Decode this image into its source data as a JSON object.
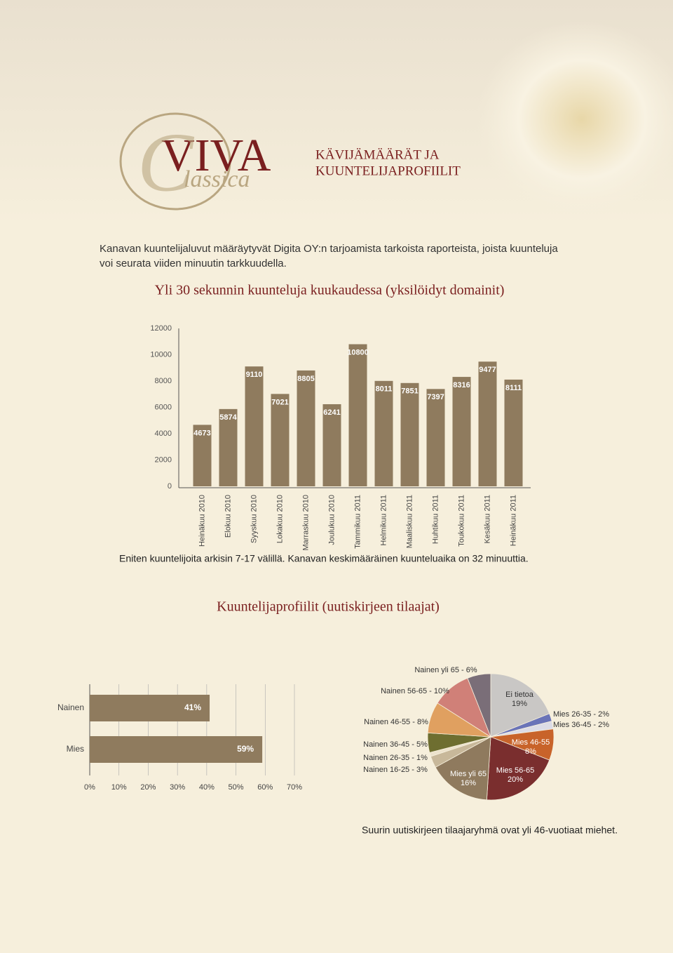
{
  "logo": {
    "main": "VIVA",
    "initial": "C",
    "script": "lassica"
  },
  "heading": {
    "lines": [
      "KÄVIJÄMÄÄRÄT JA",
      "KUUNTELIJAPROFIILIT"
    ]
  },
  "intro": {
    "lines": [
      "Kanavan kuuntelijaluvut määräytyvät Digita OY:n tarjoamista tarkoista raporteista, joista kuunteluja",
      "voi seurata viiden minuutin tarkkuudella."
    ]
  },
  "note": "Eniten kuuntelijoita arkisin 7-17 välillä. Kanavan keskimääräinen kuunteluaika on 32 minuuttia.",
  "section_title": "Kuuntelijaprofiilit (uutiskirjeen tilaajat)",
  "footer": "Suurin uutiskirjeen tilaajaryhmä ovat yli 46-vuotiaat miehet.",
  "chart_data": [
    {
      "type": "bar",
      "title": "Yli 30 sekunnin kuunteluja kuukaudessa (yksilöidyt domainit)",
      "categories": [
        "Heinäkuu 2010",
        "Elokuu 2010",
        "Syyskuu 2010",
        "Lokakuu 2010",
        "Marraskuu 2010",
        "Joulukuu 2010",
        "Tammikuu 2011",
        "Helmikuu 2011",
        "Maaliskuu 2011",
        "Huhtikuu 2011",
        "Toukokuu 2011",
        "Kesäkuu 2011",
        "Heinäkuu 2011"
      ],
      "values": [
        4673,
        5874,
        9110,
        7021,
        8805,
        6241,
        10800,
        8011,
        7851,
        7397,
        8316,
        9477,
        8111
      ],
      "color": "#8f7b5e",
      "ylim": [
        0,
        12000
      ],
      "yticks": [
        0,
        2000,
        4000,
        6000,
        8000,
        10000,
        12000
      ],
      "grid": false
    },
    {
      "type": "hbar",
      "categories": [
        "Nainen",
        "Mies"
      ],
      "values": [
        41,
        59
      ],
      "value_labels": [
        "41%",
        "59%"
      ],
      "color": "#8f7b5e",
      "xlim": [
        0,
        70
      ],
      "xticks": [
        {
          "value": 0,
          "label": "0%"
        },
        {
          "value": 10,
          "label": "10%"
        },
        {
          "value": 20,
          "label": "20%"
        },
        {
          "value": 30,
          "label": "30%"
        },
        {
          "value": 40,
          "label": "40%"
        },
        {
          "value": 50,
          "label": "50%"
        },
        {
          "value": 60,
          "label": "60%"
        },
        {
          "value": 70,
          "label": "70%"
        }
      ],
      "grid": true
    },
    {
      "type": "pie",
      "labels": [
        [
          "Ei tietoa",
          "19%"
        ],
        [
          "Mies 26-35 - 2%"
        ],
        [
          "Mies 36-45 - 2%"
        ],
        [
          "Mies 46-55",
          "8%"
        ],
        [
          "Mies 56-65",
          "20%"
        ],
        [
          "Mies yli 65",
          "16%"
        ],
        [
          "Nainen 16-25 - 3%"
        ],
        [
          "Nainen 26-35 - 1%"
        ],
        [
          "Nainen 36-45 - 5%"
        ],
        [
          "Nainen 46-55 - 8%"
        ],
        [
          "Nainen 56-65 - 10%"
        ],
        [
          "Nainen yli 65 - 6%"
        ]
      ],
      "values": [
        19,
        2,
        2,
        8,
        20,
        16,
        3,
        1,
        5,
        8,
        10,
        6
      ],
      "colors": [
        "#c9c7c5",
        "#6a74b8",
        "#dcdce6",
        "#c8632a",
        "#7a2e2e",
        "#8f7a5e",
        "#c8b89a",
        "#ece2cc",
        "#6e6e30",
        "#e0a060",
        "#d08078",
        "#7a6e78"
      ]
    }
  ]
}
